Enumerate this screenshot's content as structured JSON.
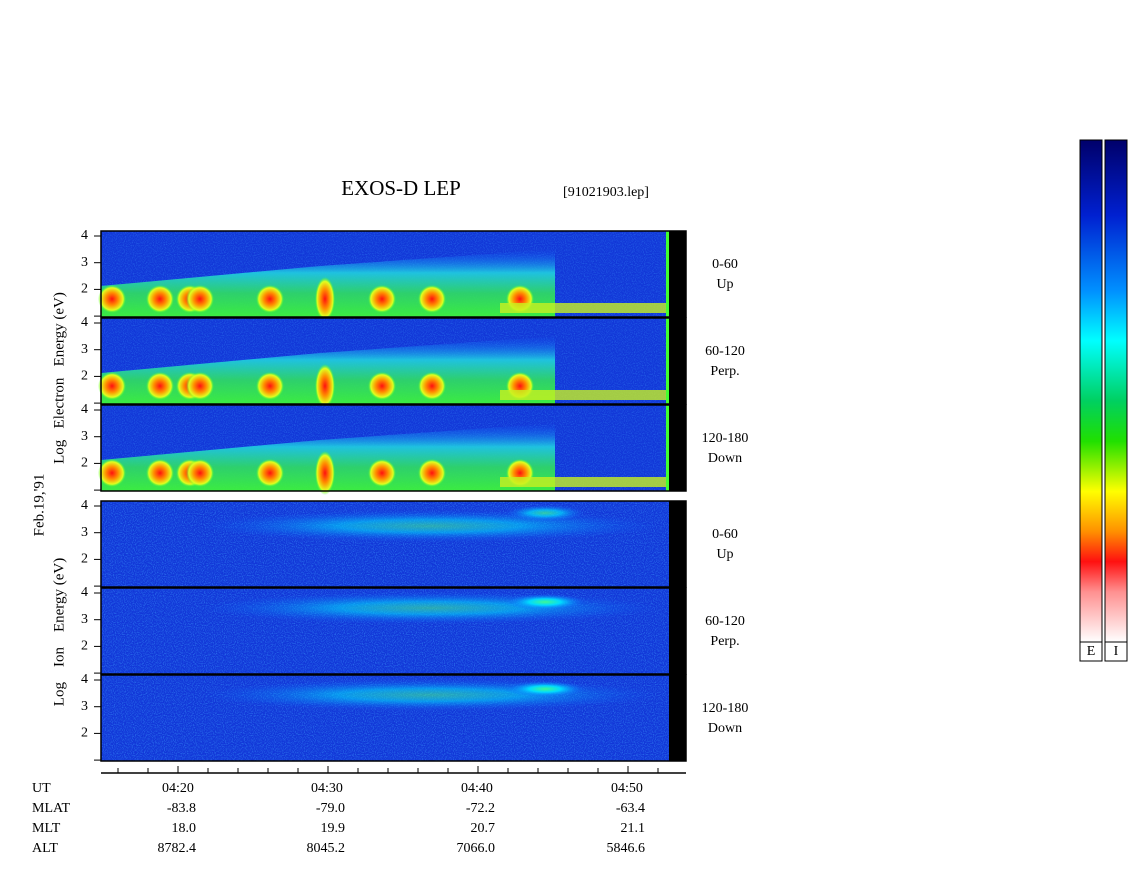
{
  "title": "EXOS-D LEP",
  "file": "[91021903.lep]",
  "date": "Feb.19,'91",
  "energy_ticks": [
    "2",
    "3",
    "4"
  ],
  "electron": {
    "axis_label": "Log   Electron   Energy (eV)",
    "panels": [
      {
        "angle": "0-60",
        "direction": "Up"
      },
      {
        "angle": "60-120",
        "direction": "Perp."
      },
      {
        "angle": "120-180",
        "direction": "Down"
      }
    ]
  },
  "ion": {
    "axis_label": "Log    Ion    Energy (eV)",
    "panels": [
      {
        "angle": "0-60",
        "direction": "Up"
      },
      {
        "angle": "60-120",
        "direction": "Perp."
      },
      {
        "angle": "120-180",
        "direction": "Down"
      }
    ]
  },
  "orbit": [
    {
      "label": "UT",
      "values": [
        "04:20",
        "04:30",
        "04:40",
        "04:50"
      ]
    },
    {
      "label": "MLAT",
      "values": [
        "-83.8",
        "-79.0",
        "-72.2",
        "-63.4"
      ]
    },
    {
      "label": "MLT",
      "values": [
        "18.0",
        "19.9",
        "20.7",
        "21.1"
      ]
    },
    {
      "label": "ALT",
      "values": [
        "8782.4",
        "8045.2",
        "7066.0",
        "5846.6"
      ]
    }
  ],
  "colorbars": [
    "E",
    "I"
  ]
}
